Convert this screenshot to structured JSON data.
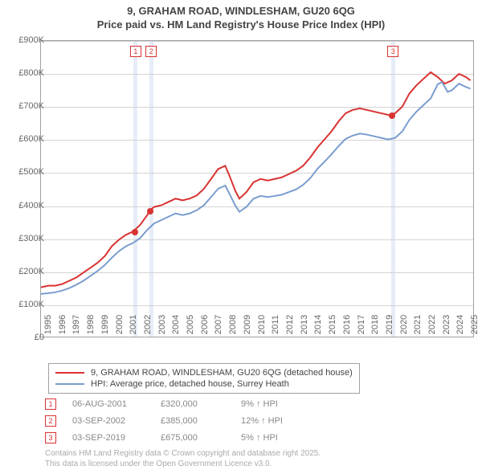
{
  "title_line1": "9, GRAHAM ROAD, WINDLESHAM, GU20 6QG",
  "title_line2": "Price paid vs. HM Land Registry's House Price Index (HPI)",
  "chart": {
    "type": "line",
    "plot_bg": "#ffffff",
    "border_color": "#a0a0a0",
    "grid_color": "#d4d4d4",
    "highlight_band_color": "#e6edf7",
    "ylim": [
      0,
      900000
    ],
    "ytick_step": 100000,
    "yticks": [
      "£0",
      "£100K",
      "£200K",
      "£300K",
      "£400K",
      "£500K",
      "£600K",
      "£700K",
      "£800K",
      "£900K"
    ],
    "xlim": [
      1995,
      2025.5
    ],
    "xticks": [
      "1995",
      "1996",
      "1997",
      "1998",
      "1999",
      "2000",
      "2001",
      "2002",
      "2003",
      "2004",
      "2005",
      "2006",
      "2007",
      "2008",
      "2009",
      "2010",
      "2011",
      "2012",
      "2013",
      "2014",
      "2015",
      "2016",
      "2017",
      "2018",
      "2019",
      "2020",
      "2021",
      "2022",
      "2023",
      "2024",
      "2025"
    ],
    "label_fontsize": 11,
    "label_color": "#666666",
    "series": [
      {
        "name": "9, GRAHAM ROAD, WINDLESHAM, GU20 6QG (detached house)",
        "color": "#d93232",
        "line_width": 2,
        "data": [
          [
            1995,
            150000
          ],
          [
            1995.5,
            155000
          ],
          [
            1996,
            155000
          ],
          [
            1996.5,
            160000
          ],
          [
            1997,
            170000
          ],
          [
            1997.5,
            180000
          ],
          [
            1998,
            195000
          ],
          [
            1998.5,
            210000
          ],
          [
            1999,
            225000
          ],
          [
            1999.5,
            245000
          ],
          [
            2000,
            275000
          ],
          [
            2000.5,
            295000
          ],
          [
            2001,
            310000
          ],
          [
            2001.5,
            320000
          ],
          [
            2002,
            340000
          ],
          [
            2002.5,
            370000
          ],
          [
            2002.7,
            385000
          ],
          [
            2003,
            395000
          ],
          [
            2003.5,
            400000
          ],
          [
            2004,
            410000
          ],
          [
            2004.5,
            420000
          ],
          [
            2005,
            415000
          ],
          [
            2005.5,
            420000
          ],
          [
            2006,
            430000
          ],
          [
            2006.5,
            450000
          ],
          [
            2007,
            480000
          ],
          [
            2007.5,
            510000
          ],
          [
            2008,
            520000
          ],
          [
            2008.3,
            490000
          ],
          [
            2008.7,
            445000
          ],
          [
            2009,
            420000
          ],
          [
            2009.5,
            440000
          ],
          [
            2010,
            470000
          ],
          [
            2010.5,
            480000
          ],
          [
            2011,
            475000
          ],
          [
            2011.5,
            480000
          ],
          [
            2012,
            485000
          ],
          [
            2012.5,
            495000
          ],
          [
            2013,
            505000
          ],
          [
            2013.5,
            520000
          ],
          [
            2014,
            545000
          ],
          [
            2014.5,
            575000
          ],
          [
            2015,
            600000
          ],
          [
            2015.5,
            625000
          ],
          [
            2016,
            655000
          ],
          [
            2016.5,
            680000
          ],
          [
            2017,
            690000
          ],
          [
            2017.5,
            695000
          ],
          [
            2018,
            690000
          ],
          [
            2018.5,
            685000
          ],
          [
            2019,
            680000
          ],
          [
            2019.5,
            675000
          ],
          [
            2019.7,
            675000
          ],
          [
            2020,
            680000
          ],
          [
            2020.5,
            700000
          ],
          [
            2021,
            740000
          ],
          [
            2021.5,
            765000
          ],
          [
            2022,
            785000
          ],
          [
            2022.5,
            805000
          ],
          [
            2023,
            790000
          ],
          [
            2023.5,
            770000
          ],
          [
            2024,
            780000
          ],
          [
            2024.5,
            800000
          ],
          [
            2025,
            790000
          ],
          [
            2025.3,
            780000
          ]
        ]
      },
      {
        "name": "HPI: Average price, detached house, Surrey Heath",
        "color": "#7a9dcf",
        "line_width": 2,
        "data": [
          [
            1995,
            130000
          ],
          [
            1995.5,
            132000
          ],
          [
            1996,
            135000
          ],
          [
            1996.5,
            140000
          ],
          [
            1997,
            148000
          ],
          [
            1997.5,
            158000
          ],
          [
            1998,
            170000
          ],
          [
            1998.5,
            185000
          ],
          [
            1999,
            200000
          ],
          [
            1999.5,
            218000
          ],
          [
            2000,
            240000
          ],
          [
            2000.5,
            260000
          ],
          [
            2001,
            275000
          ],
          [
            2001.5,
            285000
          ],
          [
            2002,
            300000
          ],
          [
            2002.5,
            325000
          ],
          [
            2003,
            345000
          ],
          [
            2003.5,
            355000
          ],
          [
            2004,
            365000
          ],
          [
            2004.5,
            375000
          ],
          [
            2005,
            370000
          ],
          [
            2005.5,
            375000
          ],
          [
            2006,
            385000
          ],
          [
            2006.5,
            400000
          ],
          [
            2007,
            425000
          ],
          [
            2007.5,
            450000
          ],
          [
            2008,
            460000
          ],
          [
            2008.3,
            435000
          ],
          [
            2008.7,
            400000
          ],
          [
            2009,
            380000
          ],
          [
            2009.5,
            395000
          ],
          [
            2010,
            420000
          ],
          [
            2010.5,
            428000
          ],
          [
            2011,
            425000
          ],
          [
            2011.5,
            428000
          ],
          [
            2012,
            432000
          ],
          [
            2012.5,
            440000
          ],
          [
            2013,
            448000
          ],
          [
            2013.5,
            462000
          ],
          [
            2014,
            482000
          ],
          [
            2014.5,
            510000
          ],
          [
            2015,
            532000
          ],
          [
            2015.5,
            555000
          ],
          [
            2016,
            580000
          ],
          [
            2016.5,
            602000
          ],
          [
            2017,
            612000
          ],
          [
            2017.5,
            618000
          ],
          [
            2018,
            615000
          ],
          [
            2018.5,
            610000
          ],
          [
            2019,
            605000
          ],
          [
            2019.5,
            600000
          ],
          [
            2020,
            605000
          ],
          [
            2020.5,
            625000
          ],
          [
            2021,
            660000
          ],
          [
            2021.5,
            685000
          ],
          [
            2022,
            705000
          ],
          [
            2022.5,
            725000
          ],
          [
            2023,
            768000
          ],
          [
            2023.3,
            775000
          ],
          [
            2023.7,
            745000
          ],
          [
            2024,
            750000
          ],
          [
            2024.5,
            770000
          ],
          [
            2025,
            760000
          ],
          [
            2025.3,
            755000
          ]
        ]
      }
    ],
    "markers": [
      {
        "n": "1",
        "x": 2001.6,
        "y": 320000
      },
      {
        "n": "2",
        "x": 2002.7,
        "y": 385000
      },
      {
        "n": "3",
        "x": 2019.7,
        "y": 675000
      }
    ],
    "marker_color": "#d93232",
    "highlight_bands": [
      {
        "x": 2001.5,
        "w": 0.3
      },
      {
        "x": 2002.6,
        "w": 0.3
      },
      {
        "x": 2019.6,
        "w": 0.3
      }
    ]
  },
  "legend": {
    "items": [
      {
        "color": "#d93232",
        "label": "9, GRAHAM ROAD, WINDLESHAM, GU20 6QG (detached house)"
      },
      {
        "color": "#7a9dcf",
        "label": "HPI: Average price, detached house, Surrey Heath"
      }
    ]
  },
  "info_rows": [
    {
      "n": "1",
      "date": "06-AUG-2001",
      "price": "£320,000",
      "pct": "9% ↑ HPI"
    },
    {
      "n": "2",
      "date": "03-SEP-2002",
      "price": "£385,000",
      "pct": "12% ↑ HPI"
    },
    {
      "n": "3",
      "date": "03-SEP-2019",
      "price": "£675,000",
      "pct": "5% ↑ HPI"
    }
  ],
  "credits_line1": "Contains HM Land Registry data © Crown copyright and database right 2025.",
  "credits_line2": "This data is licensed under the Open Government Licence v3.0."
}
